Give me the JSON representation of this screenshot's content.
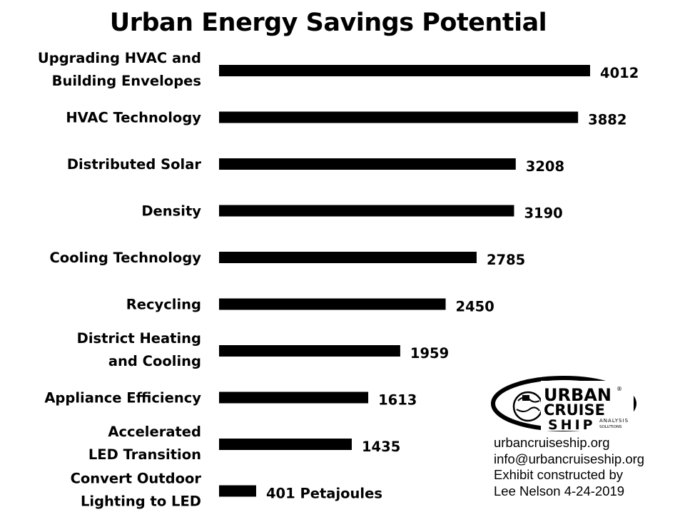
{
  "chart_data": {
    "type": "bar",
    "orientation": "horizontal",
    "title": "Urban Energy Savings Potential",
    "categories": [
      [
        "Upgrading HVAC and",
        "Building Envelopes"
      ],
      [
        "HVAC Technology"
      ],
      [
        "Distributed Solar"
      ],
      [
        "Density"
      ],
      [
        "Cooling Technology"
      ],
      [
        "Recycling"
      ],
      [
        "District Heating",
        "and Cooling"
      ],
      [
        "Appliance Efficiency"
      ],
      [
        "Accelerated",
        "LED Transition"
      ],
      [
        "Convert Outdoor",
        "Lighting to LED"
      ]
    ],
    "values": [
      4012,
      3882,
      3208,
      3190,
      2785,
      2450,
      1959,
      1613,
      1435,
      401
    ],
    "value_labels": [
      "4012",
      "3882",
      "3208",
      "3190",
      "2785",
      "2450",
      "1959",
      "1613",
      "1435",
      "401 Petajoules"
    ],
    "unit": "Petajoules",
    "xlim": [
      0,
      4100
    ],
    "bar_color": "#000000",
    "grid": false,
    "legend": "none"
  },
  "logo": {
    "line1": "URBAN",
    "line2": "CRUISE",
    "line3": "SHIP",
    "sub1": "ANALYSIS",
    "sub2": "SOLUTIONS",
    "mark": "®"
  },
  "credits": {
    "website": "urbancruiseship.org",
    "email": "info@urbancruiseship.org",
    "line3": "Exhibit constructed by",
    "line4": "Lee Nelson 4-24-2019"
  }
}
